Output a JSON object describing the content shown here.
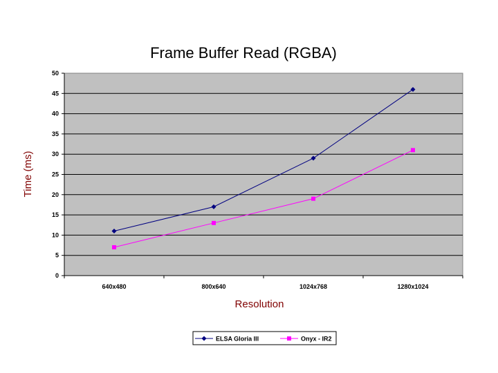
{
  "chart_data": {
    "type": "line",
    "title": "Frame Buffer Read (RGBA)",
    "xlabel": "Resolution",
    "ylabel": "Time (ms)",
    "categories": [
      "640x480",
      "800x640",
      "1024x768",
      "1280x1024"
    ],
    "ylim": [
      0,
      50
    ],
    "yticks": [
      0,
      5,
      10,
      15,
      20,
      25,
      30,
      35,
      40,
      45,
      50
    ],
    "grid": true,
    "legend_position": "bottom",
    "plot_background": "#C0C0C0",
    "axis_title_color": "#800000",
    "series": [
      {
        "name": "ELSA Gloria III",
        "values": [
          11,
          17,
          29,
          46
        ],
        "color": "#000080",
        "marker": "diamond"
      },
      {
        "name": "Onyx - IR2",
        "values": [
          7,
          13,
          19,
          31
        ],
        "color": "#FF00FF",
        "marker": "square"
      }
    ]
  }
}
